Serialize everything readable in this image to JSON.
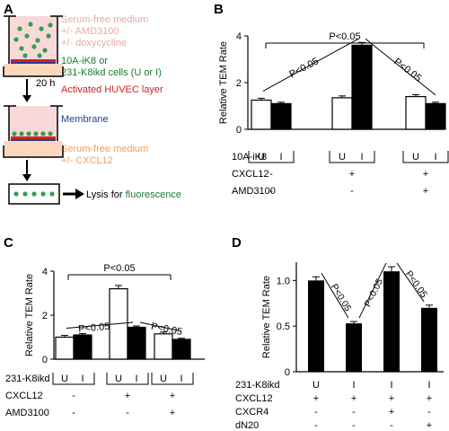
{
  "panels": {
    "A": {
      "letter": "A",
      "upper_medium": [
        "Serum-free medium",
        "+/- AMD3100",
        "+/- doxycycline"
      ],
      "cells": [
        "10A-iK8 or",
        "231-K8ikd cells (U or I)"
      ],
      "huvec": "Activated HUVEC layer",
      "membrane": "Membrane",
      "lower_medium": [
        "Serum-free medium",
        "+/- CXCL12"
      ],
      "time": "20 h",
      "lysis_prefix": "Lysis for ",
      "lysis_word": "fluorescence",
      "colors": {
        "pink": "#e8a8a8",
        "green": "#1a7a2a",
        "red": "#d42020",
        "blue": "#2a3a9a",
        "orange": "#f0a060",
        "well_fill": "#f7d9d9",
        "dot": "#2fa050"
      }
    },
    "B": {
      "letter": "B"
    },
    "C": {
      "letter": "C"
    },
    "D": {
      "letter": "D"
    }
  },
  "chart_data": [
    {
      "panel": "B",
      "type": "bar",
      "ylabel": "Relative TEM Rate",
      "ylim": [
        0,
        4
      ],
      "yticks": [
        0,
        2,
        4
      ],
      "bars": [
        {
          "group": 0,
          "code": "U",
          "fill": "white",
          "value": 1.25,
          "err": 0.08
        },
        {
          "group": 0,
          "code": "I",
          "fill": "black",
          "value": 1.1,
          "err": 0.06
        },
        {
          "group": 1,
          "code": "U",
          "fill": "white",
          "value": 1.35,
          "err": 0.08
        },
        {
          "group": 1,
          "code": "I",
          "fill": "black",
          "value": 3.6,
          "err": 0.12
        },
        {
          "group": 2,
          "code": "U",
          "fill": "white",
          "value": 1.4,
          "err": 0.08
        },
        {
          "group": 2,
          "code": "I",
          "fill": "black",
          "value": 1.1,
          "err": 0.06
        }
      ],
      "table": [
        {
          "label": "10A-iK8",
          "values": [],
          "brackets": true
        },
        {
          "label": "CXCL12",
          "values": [
            "-",
            "+",
            "+"
          ]
        },
        {
          "label": "AMD3100",
          "values": [
            "-",
            "-",
            "+"
          ]
        }
      ],
      "annotations": {
        "top": "P<0.05",
        "left": "P<0.05",
        "right": "P<0.05"
      }
    },
    {
      "panel": "C",
      "type": "bar",
      "ylabel": "Relative TEM Rate",
      "ylim": [
        0,
        4
      ],
      "yticks": [
        0,
        2,
        4
      ],
      "bars": [
        {
          "group": 0,
          "code": "U",
          "fill": "white",
          "value": 1.0,
          "err": 0.08
        },
        {
          "group": 0,
          "code": "I",
          "fill": "black",
          "value": 1.1,
          "err": 0.06
        },
        {
          "group": 1,
          "code": "U",
          "fill": "white",
          "value": 3.2,
          "err": 0.15
        },
        {
          "group": 1,
          "code": "I",
          "fill": "black",
          "value": 1.45,
          "err": 0.06
        },
        {
          "group": 2,
          "code": "U",
          "fill": "white",
          "value": 1.15,
          "err": 0.08
        },
        {
          "group": 2,
          "code": "I",
          "fill": "black",
          "value": 0.9,
          "err": 0.05
        }
      ],
      "table": [
        {
          "label": "231-K8ikd",
          "values": [],
          "brackets": true
        },
        {
          "label": "CXCL12",
          "values": [
            "-",
            "+",
            "+"
          ]
        },
        {
          "label": "AMD3100",
          "values": [
            "-",
            "-",
            "+"
          ]
        }
      ],
      "annotations": {
        "top": "P<0.05",
        "left": "P<0.05",
        "right": "P<0.05"
      }
    },
    {
      "panel": "D",
      "type": "bar",
      "ylabel": "Relative TEM Rate",
      "ylim": [
        0,
        1.2
      ],
      "yticks": [
        0,
        0.5,
        1.0
      ],
      "ytick_labels": [
        "0",
        "0.5",
        "1.0"
      ],
      "bars": [
        {
          "value": 1.0,
          "err": 0.04
        },
        {
          "value": 0.53,
          "err": 0.02
        },
        {
          "value": 1.1,
          "err": 0.05
        },
        {
          "value": 0.7,
          "err": 0.03
        }
      ],
      "table": [
        {
          "label": "231-K8ikd",
          "values": [
            "U",
            "I",
            "I",
            "I"
          ]
        },
        {
          "label": "CXCL12",
          "values": [
            "+",
            "+",
            "+",
            "+"
          ]
        },
        {
          "label": "CXCR4",
          "values": [
            "-",
            "-",
            "+",
            "-"
          ]
        },
        {
          "label": "dN20",
          "values": [
            "-",
            "-",
            "-",
            "+"
          ]
        }
      ],
      "annotations": {
        "pairs": [
          "P<0.05",
          "P<0.05",
          "P<0.05"
        ]
      }
    }
  ]
}
